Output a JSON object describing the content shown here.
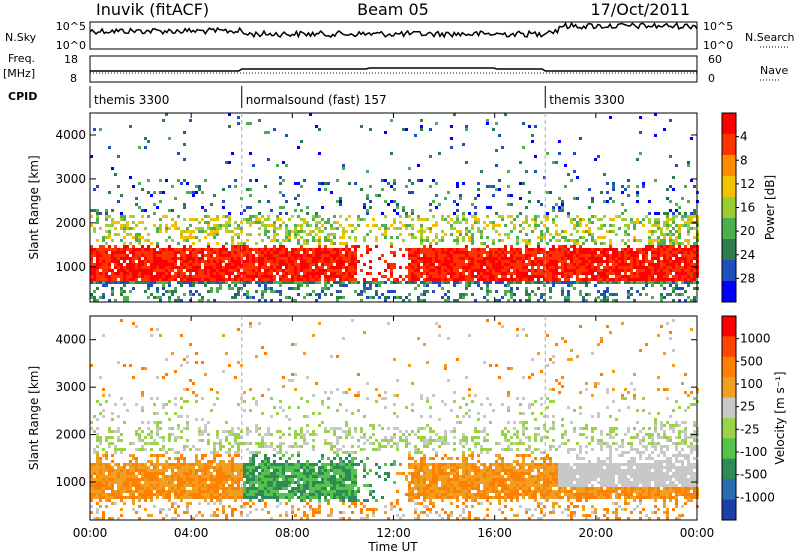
{
  "chart_data": {
    "type": "heatmap",
    "header": {
      "station": "Inuvik (fitACF)",
      "beam": "Beam 05",
      "date": "17/Oct/2011"
    },
    "x": {
      "label": "Time UT",
      "ticks": [
        "00:00",
        "04:00",
        "08:00",
        "12:00",
        "16:00",
        "20:00",
        "00:00"
      ],
      "range_hours": [
        0,
        24
      ]
    },
    "top_strip": {
      "left_label": "N.Sky",
      "right_label": "N.Search",
      "left_ticks": [
        "10^5",
        "10^0"
      ],
      "right_ticks": [
        "10^5",
        "10^0"
      ]
    },
    "freq_strip": {
      "left_label_1": "Freq.",
      "left_label_2": "[MHz]",
      "right_label": "Nave",
      "left_ticks": [
        "18",
        "8"
      ],
      "right_ticks": [
        "60",
        "0"
      ]
    },
    "cpid": {
      "label": "CPID",
      "segments": [
        {
          "start": 0,
          "end": 6,
          "name": "themis 3300"
        },
        {
          "start": 6,
          "end": 18,
          "name": "normalsound (fast) 157"
        },
        {
          "start": 18,
          "end": 24,
          "name": "themis 3300"
        }
      ]
    },
    "panels": [
      {
        "id": "power",
        "ylabel": "Slant Range [km]",
        "ylim": [
          200,
          4500
        ],
        "yticks": [
          "1000",
          "2000",
          "3000",
          "4000"
        ],
        "colorbar_label": "Power [dB]",
        "colorbar_ticks": [
          "4",
          "8",
          "12",
          "16",
          "20",
          "24",
          "28"
        ],
        "colors": [
          "#0000ff",
          "#1f4fbf",
          "#2e7d4f",
          "#4caf50",
          "#9acd32",
          "#f2c200",
          "#ff8c00",
          "#ff3300",
          "#ff0000"
        ]
      },
      {
        "id": "velocity",
        "ylabel": "Slant Range [km]",
        "ylim": [
          200,
          4500
        ],
        "yticks": [
          "1000",
          "2000",
          "3000",
          "4000"
        ],
        "colorbar_label": "Velocity [m s⁻¹]",
        "colorbar_ticks": [
          "1000",
          "500",
          "100",
          "25",
          "-25",
          "-100",
          "-500",
          "-1000"
        ],
        "colors": [
          "#1b3fa6",
          "#2a6db0",
          "#2e8b57",
          "#55c24a",
          "#9ad24a",
          "#c8c8c8",
          "#f0a020",
          "#ff7f00",
          "#ff4500",
          "#ff0000"
        ]
      }
    ]
  }
}
